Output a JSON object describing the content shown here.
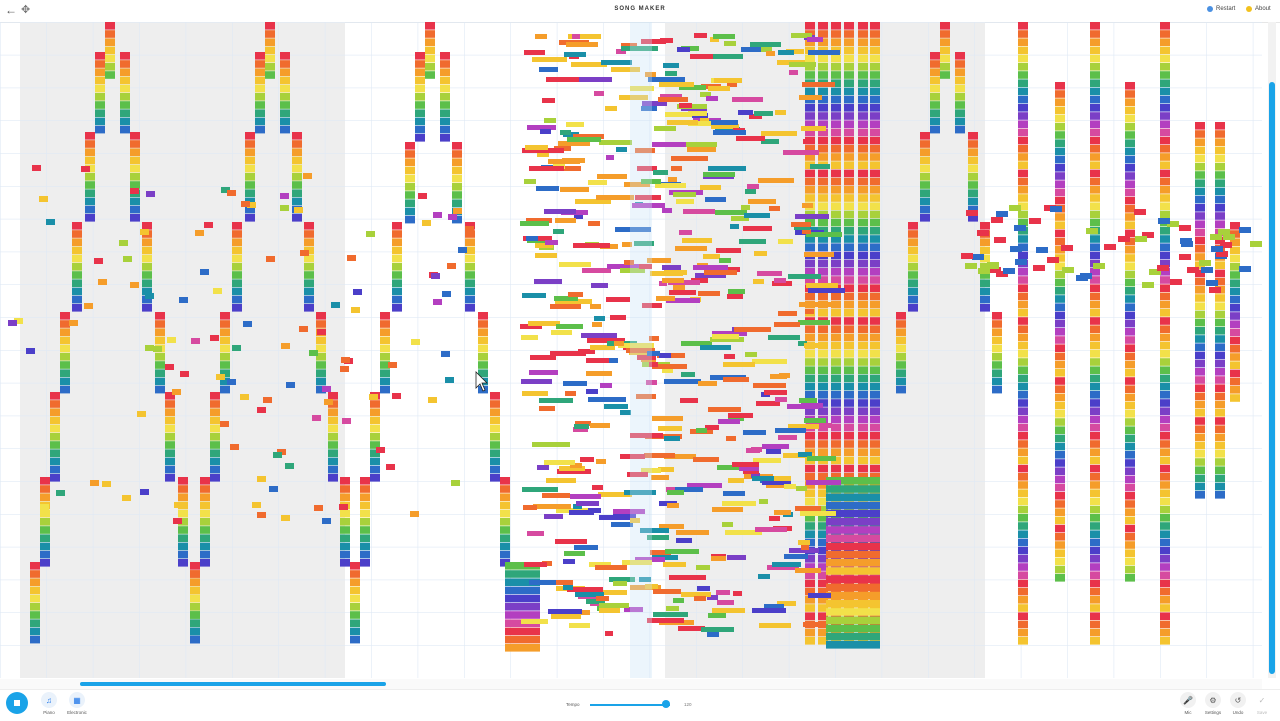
{
  "app": {
    "title": "SONG MAKER",
    "restart_label": "Restart",
    "about_label": "About",
    "restart_color": "#4a90e2",
    "about_color": "#f2c11e"
  },
  "toolbar": {
    "piano_label": "Piano",
    "electronic_label": "Electronic",
    "tempo_label": "Tempo",
    "tempo_value": "120",
    "mic_label": "Mic",
    "settings_label": "Settings",
    "undo_label": "Undo",
    "save_label": "Save"
  },
  "icons": {
    "back": "arrow-left-icon",
    "move": "move-icon",
    "play": "stop-icon",
    "piano": "piano-icon",
    "electronic": "electronic-icon",
    "mic": "mic-icon",
    "settings": "gear-icon",
    "undo": "undo-icon",
    "save": "check-icon"
  },
  "colors": {
    "accent": "#1aa3e8",
    "grid_line": "#dfe9f5",
    "measure_shade": "#eeeeee",
    "notes": [
      "#e8334a",
      "#f06b2e",
      "#f59d2a",
      "#f4c430",
      "#f2e14a",
      "#a8d13b",
      "#5cbf4a",
      "#2fa67a",
      "#1a8fa8",
      "#2d6cc7",
      "#4b3fc9",
      "#7b3fc6",
      "#b33fc0",
      "#d64aa0",
      "#e8334a",
      "#f06b2e",
      "#f59d2a",
      "#f4c430"
    ]
  }
}
